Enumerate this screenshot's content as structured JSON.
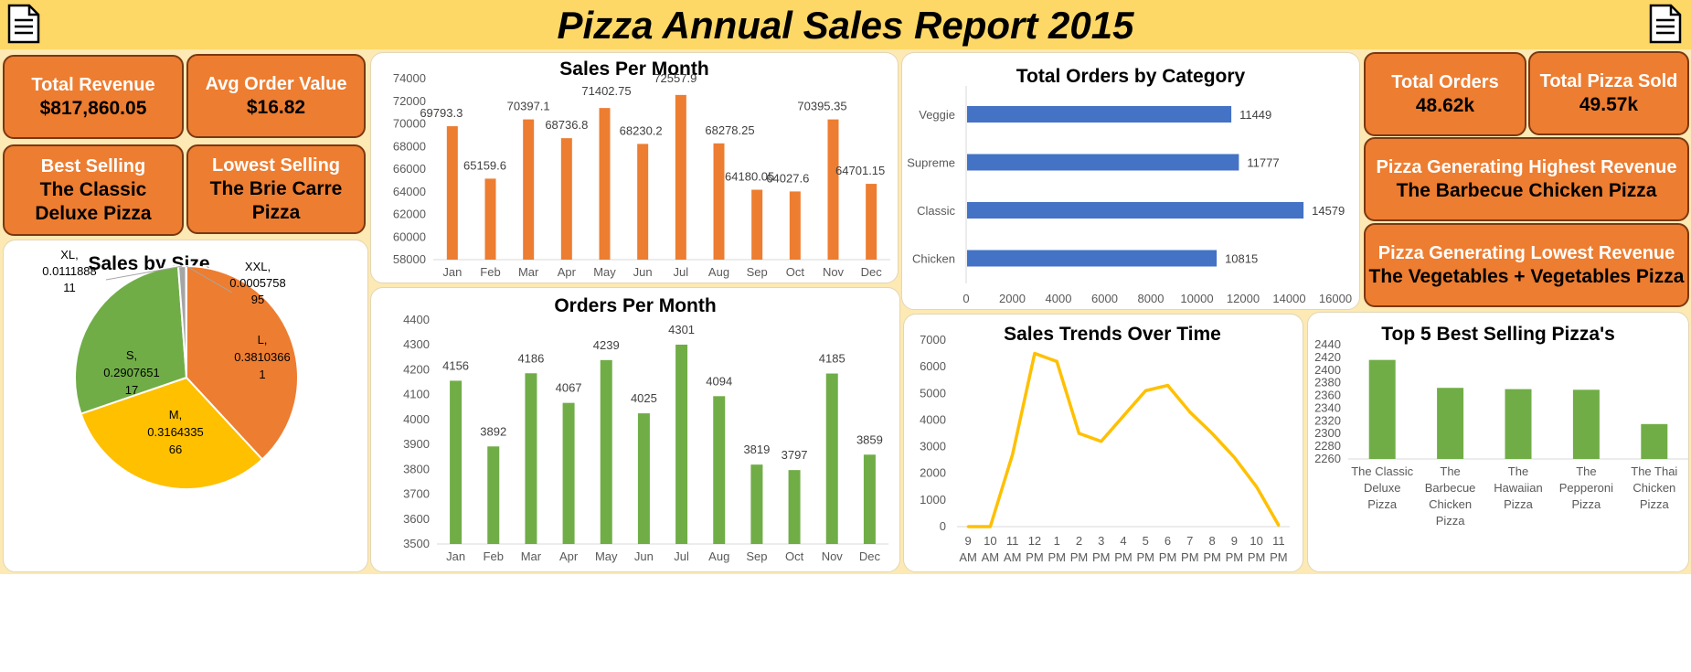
{
  "header": {
    "title": "Pizza Annual Sales Report 2015",
    "left_icon": "document-icon",
    "right_icon": "document-icon"
  },
  "colors": {
    "header_bg": "#fdd867",
    "dashboard_bg": "#fde9b3",
    "kpi_orange": "#ed7d31",
    "bar_green": "#70ad47",
    "bar_blue": "#4472c4",
    "pie_orange": "#ed7d31",
    "pie_yellow": "#ffc000",
    "pie_green": "#70ad47",
    "line_gold": "#ffc000"
  },
  "kpis": {
    "total_revenue": {
      "label": "Total Revenue",
      "value": "$817,860.05"
    },
    "avg_order_value": {
      "label": "Avg Order Value",
      "value": "$16.82"
    },
    "best_selling": {
      "label": "Best Selling",
      "value_line1": "The Classic",
      "value_line2": "Deluxe Pizza"
    },
    "lowest_selling": {
      "label": "Lowest Selling",
      "value_line1": "The Brie Carre",
      "value_line2": "Pizza"
    },
    "total_orders": {
      "label": "Total Orders",
      "value": "48.62k"
    },
    "total_pizza_sold": {
      "label": "Total Pizza Sold",
      "value": "49.57k"
    },
    "highest_revenue": {
      "label": "Pizza Generating Highest Revenue",
      "value": "The Barbecue Chicken Pizza"
    },
    "lowest_revenue": {
      "label": "Pizza Generating Lowest Revenue",
      "value": "The Vegetables + Vegetables Pizza"
    }
  },
  "chart_data": [
    {
      "id": "sales_per_month",
      "type": "bar",
      "title": "Sales Per Month",
      "categories": [
        "Jan",
        "Feb",
        "Mar",
        "Apr",
        "May",
        "Jun",
        "Jul",
        "Aug",
        "Sep",
        "Oct",
        "Nov",
        "Dec"
      ],
      "values": [
        69793.3,
        65159.6,
        70397.1,
        68736.8,
        71402.75,
        68230.2,
        72557.9,
        68278.25,
        64180.05,
        64027.6,
        70395.35,
        64701.15
      ],
      "data_labels": [
        "69793.3",
        "65159.6",
        "70397.1",
        "68736.8",
        "71402.75",
        "68230.2",
        "72557.9",
        "68278.25",
        "64180.05",
        "64027.6",
        "70395.35",
        "64701.15"
      ],
      "ylim": [
        58000,
        74000
      ],
      "yticks": [
        "58000",
        "60000",
        "62000",
        "64000",
        "66000",
        "68000",
        "70000",
        "72000",
        "74000"
      ],
      "color": "#ed7d31"
    },
    {
      "id": "orders_per_month",
      "type": "bar",
      "title": "Orders Per Month",
      "categories": [
        "Jan",
        "Feb",
        "Mar",
        "Apr",
        "May",
        "Jun",
        "Jul",
        "Aug",
        "Sep",
        "Oct",
        "Nov",
        "Dec"
      ],
      "values": [
        4156,
        3892,
        4186,
        4067,
        4239,
        4025,
        4301,
        4094,
        3819,
        3797,
        4185,
        3859
      ],
      "data_labels": [
        "4156",
        "3892",
        "4186",
        "4067",
        "4239",
        "4025",
        "4301",
        "4094",
        "3819",
        "3797",
        "4185",
        "3859"
      ],
      "ylim": [
        3500,
        4400
      ],
      "yticks": [
        "3500",
        "3600",
        "3700",
        "3800",
        "3900",
        "4000",
        "4100",
        "4200",
        "4300",
        "4400"
      ],
      "color": "#70ad47"
    },
    {
      "id": "orders_by_category",
      "type": "bar",
      "orientation": "horizontal",
      "title": "Total Orders by Category",
      "categories": [
        "Veggie",
        "Supreme",
        "Classic",
        "Chicken"
      ],
      "values": [
        11449,
        11777,
        14579,
        10815
      ],
      "data_labels": [
        "11449",
        "11777",
        "14579",
        "10815"
      ],
      "xlim": [
        0,
        16000
      ],
      "xticks": [
        "0",
        "2000",
        "4000",
        "6000",
        "8000",
        "10000",
        "12000",
        "14000",
        "16000"
      ],
      "color": "#4472c4"
    },
    {
      "id": "sales_by_size",
      "type": "pie",
      "title": "Sales by Size",
      "categories": [
        "L",
        "M",
        "S",
        "XL",
        "XXL"
      ],
      "values": [
        0.3810366,
        0.3164335,
        0.2907651,
        0.0111888,
        0.0005758
      ],
      "labels": [
        [
          "L,",
          "0.3810366",
          "1"
        ],
        [
          "M,",
          "0.3164335",
          "66"
        ],
        [
          "S,",
          "0.2907651",
          "17"
        ],
        [
          "XL,",
          "0.0111888",
          "11"
        ],
        [
          "XXL,",
          "0.0005758",
          "95"
        ]
      ],
      "colors": [
        "#ed7d31",
        "#ffc000",
        "#70ad47",
        "#a5a5a5",
        "#264478"
      ]
    },
    {
      "id": "sales_trends",
      "type": "line",
      "title": "Sales Trends Over Time",
      "categories": [
        [
          "9",
          "AM"
        ],
        [
          "10",
          "AM"
        ],
        [
          "11",
          "AM"
        ],
        [
          "12",
          "PM"
        ],
        [
          "1",
          "PM"
        ],
        [
          "2",
          "PM"
        ],
        [
          "3",
          "PM"
        ],
        [
          "4",
          "PM"
        ],
        [
          "5",
          "PM"
        ],
        [
          "6",
          "PM"
        ],
        [
          "7",
          "PM"
        ],
        [
          "8",
          "PM"
        ],
        [
          "9",
          "PM"
        ],
        [
          "10",
          "PM"
        ],
        [
          "11",
          "PM"
        ]
      ],
      "values": [
        0,
        0,
        2700,
        6500,
        6200,
        3500,
        3200,
        4150,
        5100,
        5300,
        4300,
        3500,
        2600,
        1500,
        50
      ],
      "ylim": [
        0,
        7000
      ],
      "yticks": [
        "0",
        "1000",
        "2000",
        "3000",
        "4000",
        "5000",
        "6000",
        "7000"
      ],
      "color": "#ffc000"
    },
    {
      "id": "top5_pizzas",
      "type": "bar",
      "title": "Top 5 Best Selling Pizza's",
      "categories": [
        [
          "The Classic",
          "Deluxe",
          "Pizza"
        ],
        [
          "The",
          "Barbecue",
          "Chicken",
          "Pizza"
        ],
        [
          "The",
          "Hawaiian",
          "Pizza"
        ],
        [
          "The",
          "Pepperoni",
          "Pizza"
        ],
        [
          "The Thai",
          "Chicken",
          "Pizza"
        ]
      ],
      "values": [
        2416,
        2372,
        2370,
        2369,
        2315
      ],
      "ylim": [
        2260,
        2440
      ],
      "yticks": [
        "2260",
        "2280",
        "2300",
        "2320",
        "2340",
        "2360",
        "2380",
        "2400",
        "2420",
        "2440"
      ],
      "color": "#70ad47"
    }
  ]
}
